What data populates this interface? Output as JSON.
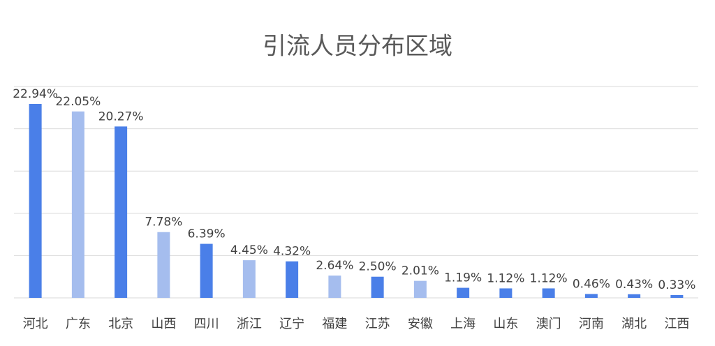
{
  "chart_data": {
    "type": "bar",
    "title": "引流人员分布区域",
    "categories": [
      "河北",
      "广东",
      "北京",
      "山西",
      "四川",
      "浙江",
      "辽宁",
      "福建",
      "江苏",
      "安徽",
      "上海",
      "山东",
      "澳门",
      "河南",
      "湖北",
      "江西"
    ],
    "values": [
      22.94,
      22.05,
      20.27,
      7.78,
      6.39,
      4.45,
      4.32,
      2.64,
      2.5,
      2.01,
      1.19,
      1.12,
      1.12,
      0.46,
      0.43,
      0.33
    ],
    "value_labels": [
      "22.94%",
      "22.05%",
      "20.27%",
      "7.78%",
      "6.39%",
      "4.45%",
      "4.32%",
      "2.64%",
      "2.50%",
      "2.01%",
      "1.19%",
      "1.12%",
      "1.12%",
      "0.46%",
      "0.43%",
      "0.33%"
    ],
    "colors": [
      "#4a7fe8",
      "#a5bdee",
      "#4a7fe8",
      "#a5bdee",
      "#4a7fe8",
      "#a5bdee",
      "#4a7fe8",
      "#a5bdee",
      "#4a7fe8",
      "#a5bdee",
      "#4a7fe8",
      "#4a7fe8",
      "#4a7fe8",
      "#4a7fe8",
      "#4a7fe8",
      "#4a7fe8"
    ],
    "ylim": [
      0,
      25
    ],
    "yticks": [
      0,
      5,
      10,
      15,
      20,
      25
    ],
    "grid": true
  }
}
